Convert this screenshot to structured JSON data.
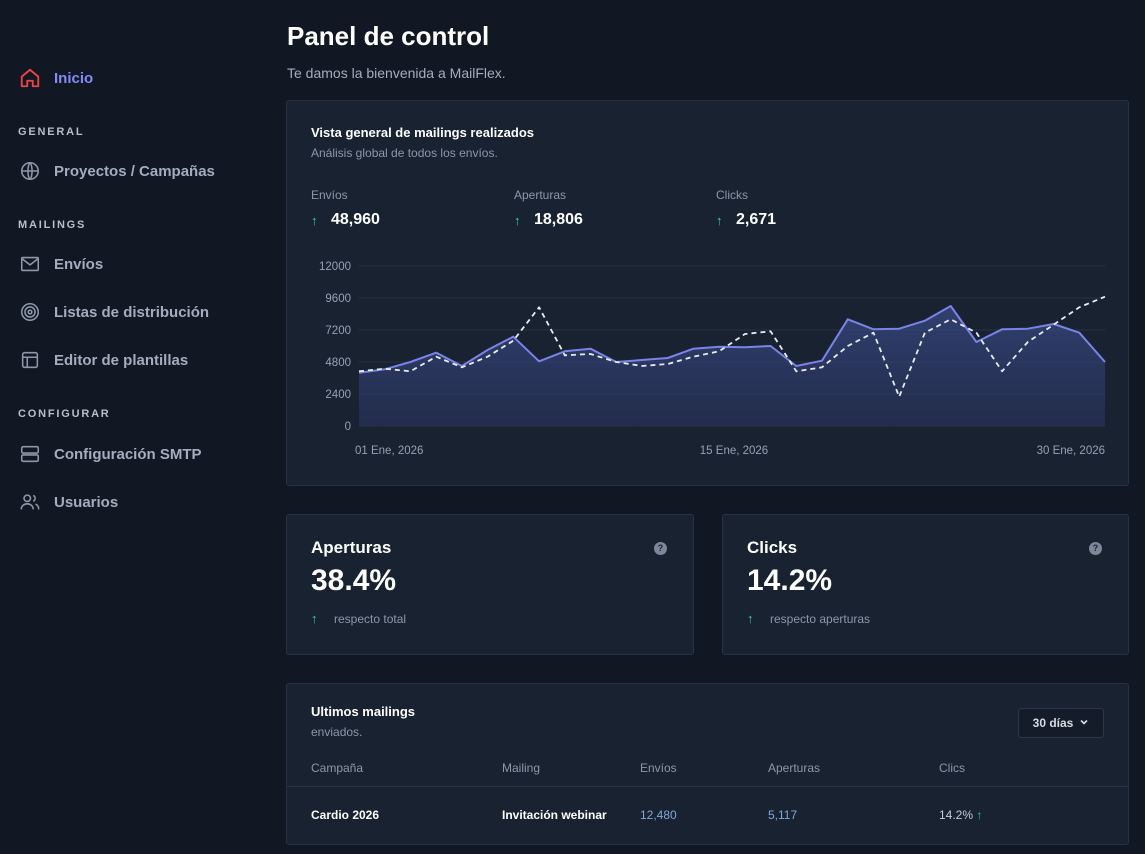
{
  "sidebar": {
    "home": {
      "label": "Inicio",
      "icon": "home-icon"
    },
    "sections": [
      {
        "title": "GENERAL",
        "items": [
          {
            "label": "Proyectos / Campañas",
            "icon": "globe-icon"
          }
        ]
      },
      {
        "title": "MAILINGS",
        "items": [
          {
            "label": "Envíos",
            "icon": "mail-icon"
          },
          {
            "label": "Listas de distribución",
            "icon": "target-icon"
          },
          {
            "label": "Editor de plantillas",
            "icon": "layout-icon"
          }
        ]
      },
      {
        "title": "CONFIGURAR",
        "items": [
          {
            "label": "Configuración SMTP",
            "icon": "server-icon"
          },
          {
            "label": "Usuarios",
            "icon": "users-icon"
          }
        ]
      }
    ]
  },
  "header": {
    "title": "Panel de control",
    "subtitle": "Te damos la bienvenida a MailFlex."
  },
  "overview": {
    "title": "Vista general de mailings realizados",
    "subtitle": "Análisis global de todos los envíos.",
    "stats": [
      {
        "label": "Envíos",
        "value": "48,960"
      },
      {
        "label": "Aperturas",
        "value": "18,806"
      },
      {
        "label": "Clicks",
        "value": "2,671"
      }
    ]
  },
  "chart_data": {
    "type": "area",
    "x_labels": [
      "01 Ene, 2026",
      "15 Ene, 2026",
      "30 Ene, 2026"
    ],
    "x": [
      "01 Ene, 2026",
      "02 Ene, 2026",
      "03 Ene, 2026",
      "04 Ene, 2026",
      "05 Ene, 2026",
      "06 Ene, 2026",
      "07 Ene, 2026",
      "08 Ene, 2026",
      "09 Ene, 2026",
      "10 Ene, 2026",
      "11 Ene, 2026",
      "12 Ene, 2026",
      "13 Ene, 2026",
      "14 Ene, 2026",
      "15 Ene, 2026",
      "16 Ene, 2026",
      "17 Ene, 2026",
      "18 Ene, 2026",
      "19 Ene, 2026",
      "20 Ene, 2026",
      "21 Ene, 2026",
      "22 Ene, 2026",
      "23 Ene, 2026",
      "24 Ene, 2026",
      "25 Ene, 2026",
      "26 Ene, 2026",
      "27 Ene, 2026",
      "28 Ene, 2026",
      "29 Ene, 2026",
      "30 Ene, 2026"
    ],
    "ylim": [
      0,
      12000
    ],
    "yticks": [
      0,
      2400,
      4800,
      7200,
      9600,
      12000
    ],
    "series": [
      {
        "style": "solid-area",
        "color": "#7b83e8",
        "values": [
          4000,
          4250,
          4800,
          5500,
          4500,
          5700,
          6700,
          4850,
          5600,
          5800,
          4800,
          4950,
          5100,
          5800,
          5950,
          5900,
          6000,
          4500,
          4900,
          8000,
          7250,
          7300,
          7900,
          9000,
          6300,
          7250,
          7300,
          7650,
          7000,
          4800
        ]
      },
      {
        "style": "dashed",
        "color": "#e8ecf3",
        "values": [
          4100,
          4300,
          4100,
          5200,
          4400,
          5200,
          6400,
          8900,
          5300,
          5400,
          4800,
          4500,
          4650,
          5200,
          5600,
          6900,
          7100,
          4100,
          4400,
          6000,
          7000,
          2200,
          7000,
          8000,
          7000,
          4100,
          6300,
          7600,
          8900,
          9700
        ]
      }
    ]
  },
  "metrics": [
    {
      "title": "Aperturas",
      "value": "38.4%",
      "note": "respecto total"
    },
    {
      "title": "Clicks",
      "value": "14.2%",
      "note": "respecto aperturas"
    }
  ],
  "table": {
    "title": "Ultimos mailings",
    "subtitle": "enviados.",
    "range": "30 días",
    "columns": [
      "Campaña",
      "Mailing",
      "Envíos",
      "Aperturas",
      "Clics"
    ],
    "rows": [
      {
        "campaign": "Cardio 2026",
        "mailing": "Invitación webinar",
        "sends": "12,480",
        "opens": "5,117",
        "clicks": "14.2%"
      }
    ]
  },
  "colors": {
    "accent": "#818cf8",
    "up": "#34d399",
    "home_icon": "#ef4444"
  }
}
